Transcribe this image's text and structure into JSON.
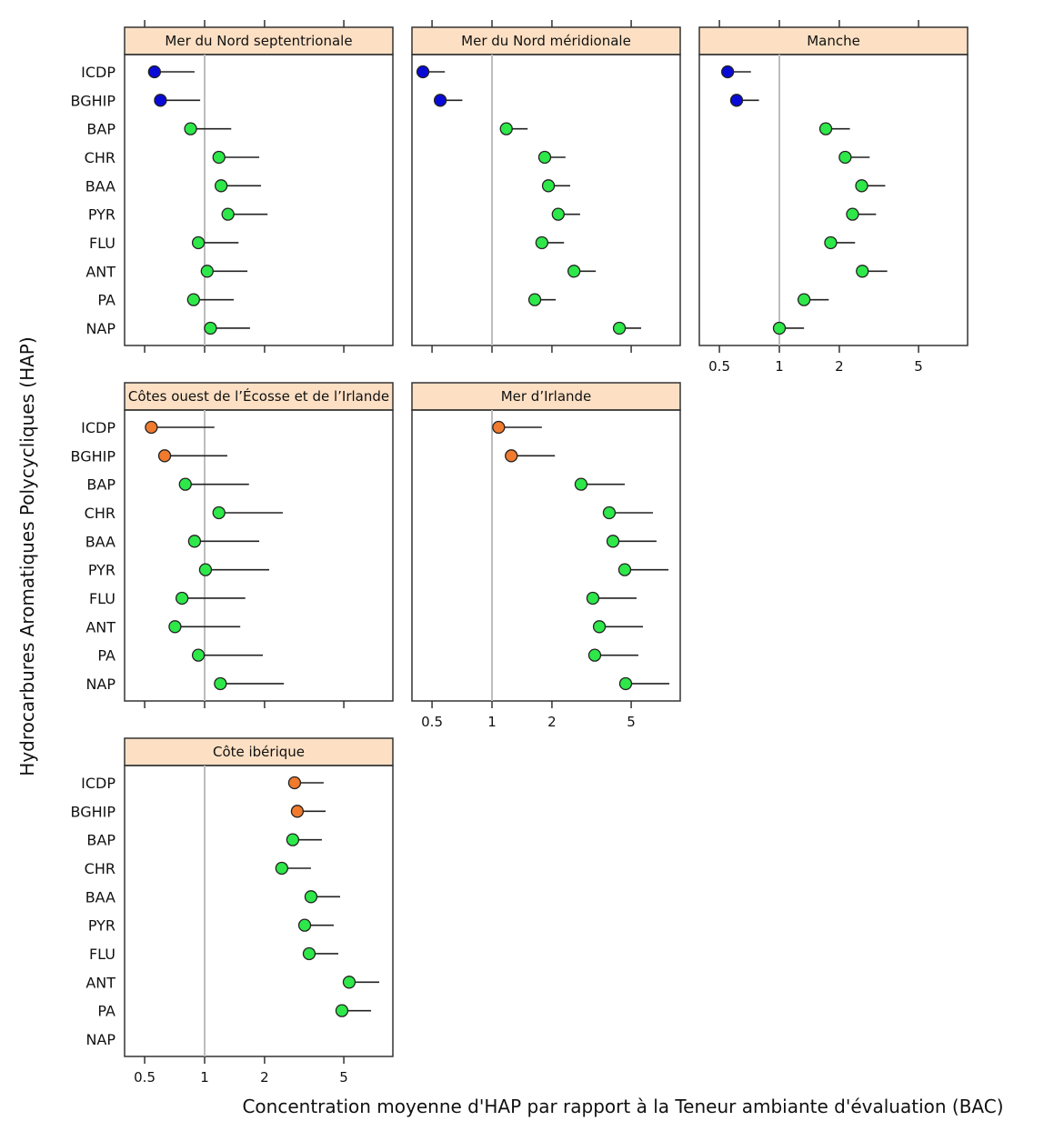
{
  "chart_data": {
    "type": "scatter",
    "subtype": "dot-plot with upper whisker",
    "ylabel": "Hydrocarbures Aromatiques Polycycliques (HAP)",
    "xlabel": "Concentration moyenne d'HAP par rapport à la Teneur ambiante d'évaluation (BAC)",
    "x_scale": "log",
    "xlim": [
      0.4,
      9
    ],
    "x_ticks": [
      "0.5",
      "1",
      "2",
      "5"
    ],
    "x_tick_values": [
      0.5,
      1,
      2,
      5
    ],
    "reference_line": 1,
    "categories": [
      "ICDP",
      "BGHIP",
      "BAP",
      "CHR",
      "BAA",
      "PYR",
      "FLU",
      "ANT",
      "PA",
      "NAP"
    ],
    "colors": {
      "blue": "#0a0ad6",
      "green": "#2ee84a",
      "orange": "#f07a2e",
      "strip": "#fde0c4",
      "refline": "#bdbdbd"
    },
    "panels": [
      {
        "title": "Mer du Nord septentrionale",
        "show_axis_labels": false,
        "points": [
          {
            "cat": "ICDP",
            "value": 0.56,
            "upper": 0.89,
            "status": "blue"
          },
          {
            "cat": "BGHIP",
            "value": 0.6,
            "upper": 0.95,
            "status": "blue"
          },
          {
            "cat": "BAP",
            "value": 0.85,
            "upper": 1.36,
            "status": "green"
          },
          {
            "cat": "CHR",
            "value": 1.18,
            "upper": 1.88,
            "status": "green"
          },
          {
            "cat": "BAA",
            "value": 1.21,
            "upper": 1.92,
            "status": "green"
          },
          {
            "cat": "PYR",
            "value": 1.31,
            "upper": 2.07,
            "status": "green"
          },
          {
            "cat": "FLU",
            "value": 0.93,
            "upper": 1.48,
            "status": "green"
          },
          {
            "cat": "ANT",
            "value": 1.03,
            "upper": 1.64,
            "status": "green"
          },
          {
            "cat": "PA",
            "value": 0.88,
            "upper": 1.4,
            "status": "green"
          },
          {
            "cat": "NAP",
            "value": 1.07,
            "upper": 1.69,
            "status": "green"
          }
        ]
      },
      {
        "title": "Mer du Nord méridionale",
        "show_axis_labels": false,
        "points": [
          {
            "cat": "ICDP",
            "value": 0.45,
            "upper": 0.58,
            "status": "blue"
          },
          {
            "cat": "BGHIP",
            "value": 0.55,
            "upper": 0.71,
            "status": "blue"
          },
          {
            "cat": "BAP",
            "value": 1.18,
            "upper": 1.51,
            "status": "green"
          },
          {
            "cat": "CHR",
            "value": 1.84,
            "upper": 2.34,
            "status": "green"
          },
          {
            "cat": "BAA",
            "value": 1.92,
            "upper": 2.47,
            "status": "green"
          },
          {
            "cat": "PYR",
            "value": 2.15,
            "upper": 2.77,
            "status": "green"
          },
          {
            "cat": "FLU",
            "value": 1.78,
            "upper": 2.3,
            "status": "green"
          },
          {
            "cat": "ANT",
            "value": 2.58,
            "upper": 3.32,
            "status": "green"
          },
          {
            "cat": "PA",
            "value": 1.64,
            "upper": 2.09,
            "status": "green"
          },
          {
            "cat": "NAP",
            "value": 4.36,
            "upper": 5.61,
            "status": "green"
          }
        ]
      },
      {
        "title": "Manche",
        "show_axis_labels": true,
        "points": [
          {
            "cat": "ICDP",
            "value": 0.55,
            "upper": 0.72,
            "status": "blue"
          },
          {
            "cat": "BGHIP",
            "value": 0.61,
            "upper": 0.79,
            "status": "blue"
          },
          {
            "cat": "BAP",
            "value": 1.71,
            "upper": 2.26,
            "status": "green"
          },
          {
            "cat": "CHR",
            "value": 2.14,
            "upper": 2.84,
            "status": "green"
          },
          {
            "cat": "BAA",
            "value": 2.59,
            "upper": 3.4,
            "status": "green"
          },
          {
            "cat": "PYR",
            "value": 2.33,
            "upper": 3.06,
            "status": "green"
          },
          {
            "cat": "FLU",
            "value": 1.81,
            "upper": 2.4,
            "status": "green"
          },
          {
            "cat": "ANT",
            "value": 2.61,
            "upper": 3.48,
            "status": "green"
          },
          {
            "cat": "PA",
            "value": 1.33,
            "upper": 1.77,
            "status": "green"
          },
          {
            "cat": "NAP",
            "value": 1.0,
            "upper": 1.33,
            "status": "green"
          }
        ]
      },
      {
        "title": "Côtes ouest de l’Écosse et de l’Irlande",
        "show_axis_labels": false,
        "points": [
          {
            "cat": "ICDP",
            "value": 0.54,
            "upper": 1.12,
            "status": "orange"
          },
          {
            "cat": "BGHIP",
            "value": 0.63,
            "upper": 1.3,
            "status": "orange"
          },
          {
            "cat": "BAP",
            "value": 0.8,
            "upper": 1.67,
            "status": "green"
          },
          {
            "cat": "CHR",
            "value": 1.18,
            "upper": 2.47,
            "status": "green"
          },
          {
            "cat": "BAA",
            "value": 0.89,
            "upper": 1.88,
            "status": "green"
          },
          {
            "cat": "PYR",
            "value": 1.01,
            "upper": 2.11,
            "status": "green"
          },
          {
            "cat": "FLU",
            "value": 0.77,
            "upper": 1.6,
            "status": "green"
          },
          {
            "cat": "ANT",
            "value": 0.71,
            "upper": 1.51,
            "status": "green"
          },
          {
            "cat": "PA",
            "value": 0.93,
            "upper": 1.96,
            "status": "green"
          },
          {
            "cat": "NAP",
            "value": 1.2,
            "upper": 2.5,
            "status": "green"
          }
        ]
      },
      {
        "title": "Mer d’Irlande",
        "show_axis_labels": true,
        "points": [
          {
            "cat": "ICDP",
            "value": 1.08,
            "upper": 1.78,
            "status": "orange"
          },
          {
            "cat": "BGHIP",
            "value": 1.25,
            "upper": 2.07,
            "status": "orange"
          },
          {
            "cat": "BAP",
            "value": 2.8,
            "upper": 4.64,
            "status": "green"
          },
          {
            "cat": "CHR",
            "value": 3.88,
            "upper": 6.43,
            "status": "green"
          },
          {
            "cat": "BAA",
            "value": 4.05,
            "upper": 6.7,
            "status": "green"
          },
          {
            "cat": "PYR",
            "value": 4.64,
            "upper": 7.69,
            "status": "green"
          },
          {
            "cat": "FLU",
            "value": 3.21,
            "upper": 5.32,
            "status": "green"
          },
          {
            "cat": "ANT",
            "value": 3.46,
            "upper": 5.73,
            "status": "green"
          },
          {
            "cat": "PA",
            "value": 3.28,
            "upper": 5.43,
            "status": "green"
          },
          {
            "cat": "NAP",
            "value": 4.69,
            "upper": 7.77,
            "status": "green"
          }
        ]
      },
      {
        "title": "Côte ibérique",
        "show_axis_labels": true,
        "points": [
          {
            "cat": "ICDP",
            "value": 2.83,
            "upper": 3.96,
            "status": "orange"
          },
          {
            "cat": "BGHIP",
            "value": 2.92,
            "upper": 4.05,
            "status": "orange"
          },
          {
            "cat": "BAP",
            "value": 2.77,
            "upper": 3.88,
            "status": "green"
          },
          {
            "cat": "CHR",
            "value": 2.44,
            "upper": 3.42,
            "status": "green"
          },
          {
            "cat": "BAA",
            "value": 3.42,
            "upper": 4.79,
            "status": "green"
          },
          {
            "cat": "PYR",
            "value": 3.18,
            "upper": 4.45,
            "status": "green"
          },
          {
            "cat": "FLU",
            "value": 3.35,
            "upper": 4.69,
            "status": "green"
          },
          {
            "cat": "ANT",
            "value": 5.32,
            "upper": 7.53,
            "status": "green"
          },
          {
            "cat": "PA",
            "value": 4.89,
            "upper": 6.85,
            "status": "green"
          }
        ]
      }
    ]
  }
}
